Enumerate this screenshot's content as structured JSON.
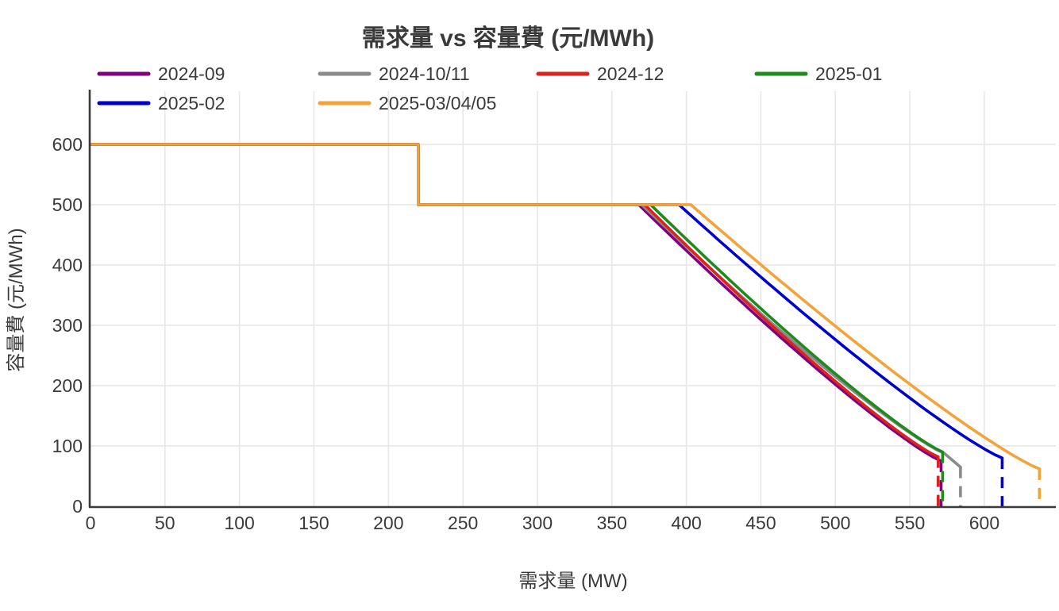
{
  "chart_data": {
    "type": "line",
    "title": "需求量 vs 容量費 (元/MWh)",
    "xlabel": "需求量 (MW)",
    "ylabel": "容量費 (元/MWh)",
    "x_ticks": [
      0,
      50,
      100,
      150,
      200,
      250,
      300,
      350,
      400,
      450,
      500,
      550,
      600
    ],
    "y_ticks": [
      0,
      100,
      200,
      300,
      400,
      500,
      600
    ],
    "xlim": [
      0,
      648
    ],
    "ylim": [
      0,
      688
    ],
    "grid": true,
    "legend_position": "top",
    "colors": {
      "text": "#3a3a3a",
      "grid": "#e7e7e7",
      "spine": "#3a3a3a",
      "background": "#ffffff"
    },
    "step": {
      "x": 220,
      "from": 600,
      "to": 500
    },
    "curve_exponent": 1.15,
    "series": [
      {
        "name": "2024-09",
        "color": "#800080",
        "plateau_end": 368,
        "end_x": 571,
        "end_y": 75,
        "key_points": [
          [
            0,
            600
          ],
          [
            220,
            600
          ],
          [
            220,
            500
          ],
          [
            368,
            500
          ],
          [
            435,
            343
          ],
          [
            502,
            198
          ],
          [
            571,
            75
          ],
          [
            571,
            0
          ]
        ]
      },
      {
        "name": "2024-10/11",
        "color": "#8a8a8a",
        "plateau_end": 370,
        "end_x": 573,
        "end_y": 88,
        "tail": [
          [
            584,
            65
          ]
        ],
        "key_points": [
          [
            0,
            600
          ],
          [
            220,
            600
          ],
          [
            220,
            500
          ],
          [
            370,
            500
          ],
          [
            437,
            348
          ],
          [
            504,
            207
          ],
          [
            573,
            88
          ],
          [
            584,
            65
          ],
          [
            584,
            0
          ]
        ]
      },
      {
        "name": "2024-12",
        "color": "#dc241f",
        "plateau_end": 372,
        "end_x": 569,
        "end_y": 82,
        "key_points": [
          [
            0,
            600
          ],
          [
            220,
            600
          ],
          [
            220,
            500
          ],
          [
            372,
            500
          ],
          [
            437,
            346
          ],
          [
            502,
            203
          ],
          [
            569,
            82
          ],
          [
            569,
            0
          ]
        ]
      },
      {
        "name": "2025-01",
        "color": "#1f8b1f",
        "plateau_end": 376,
        "end_x": 572,
        "end_y": 90,
        "key_points": [
          [
            0,
            600
          ],
          [
            220,
            600
          ],
          [
            220,
            500
          ],
          [
            376,
            500
          ],
          [
            441,
            349
          ],
          [
            505,
            209
          ],
          [
            572,
            90
          ],
          [
            572,
            0
          ]
        ]
      },
      {
        "name": "2025-02",
        "color": "#0000cd",
        "plateau_end": 395,
        "end_x": 612,
        "end_y": 80,
        "key_points": [
          [
            0,
            600
          ],
          [
            220,
            600
          ],
          [
            220,
            500
          ],
          [
            395,
            500
          ],
          [
            467,
            345
          ],
          [
            538,
            201
          ],
          [
            612,
            80
          ],
          [
            612,
            0
          ]
        ]
      },
      {
        "name": "2025-03/04/05",
        "color": "#f2a43a",
        "plateau_end": 403,
        "end_x": 637,
        "end_y": 62,
        "key_points": [
          [
            0,
            600
          ],
          [
            220,
            600
          ],
          [
            220,
            500
          ],
          [
            403,
            500
          ],
          [
            480,
            338
          ],
          [
            557,
            189
          ],
          [
            637,
            62
          ],
          [
            637,
            0
          ]
        ]
      }
    ]
  }
}
